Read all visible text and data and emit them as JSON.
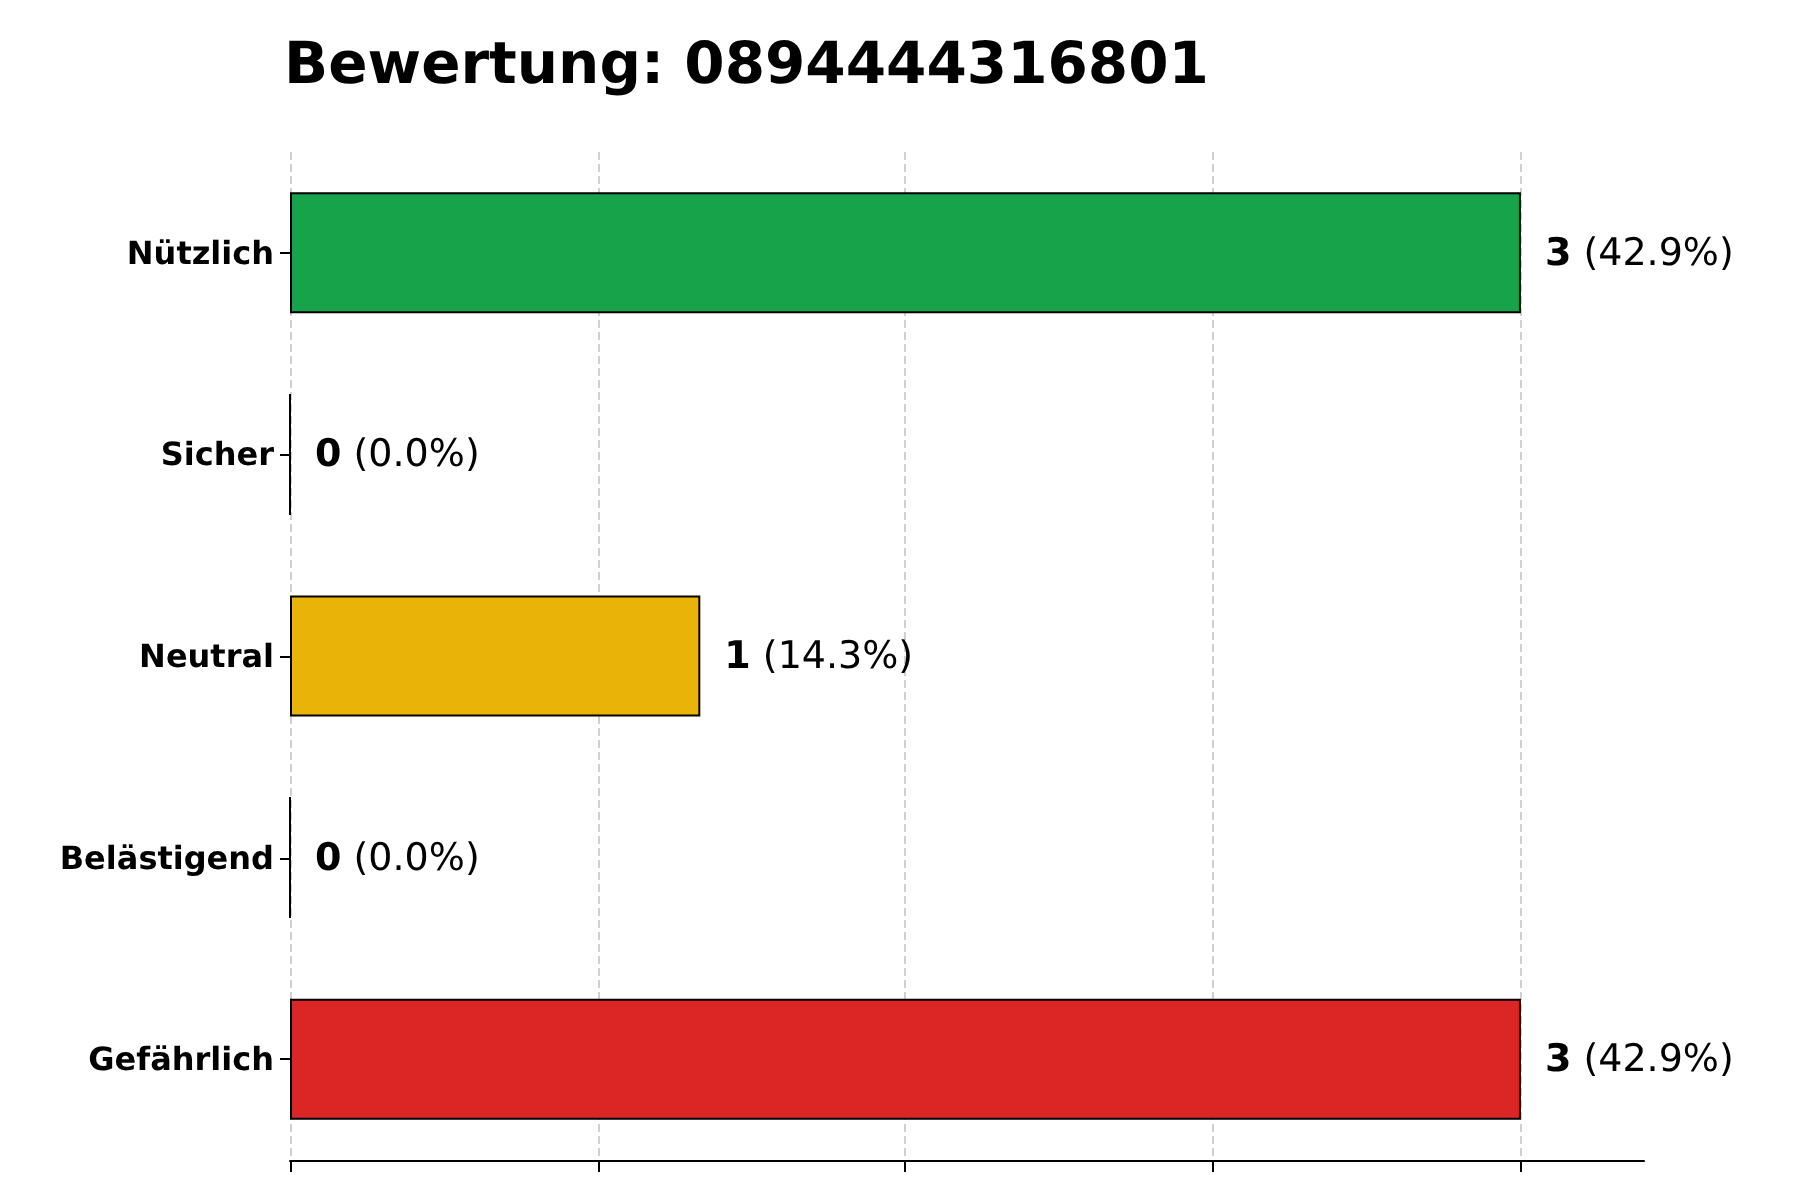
{
  "chart_data": {
    "type": "bar",
    "orientation": "horizontal",
    "title": "Bewertung: 0894444316801",
    "categories": [
      "Nützlich",
      "Sicher",
      "Neutral",
      "Belästigend",
      "Gefährlich"
    ],
    "values": [
      3,
      0,
      1,
      0,
      3
    ],
    "colors": [
      "#16a34a",
      "#000000",
      "#eab308",
      "#000000",
      "#dc2626"
    ],
    "value_labels": [
      "3 (42.9%)",
      "0 (0.0%)",
      "1 (14.3%)",
      "0 (0.0%)",
      "3 (42.9%)"
    ],
    "xlim": [
      0,
      3.3
    ],
    "xticks": [
      {
        "value": 0,
        "label": null
      },
      {
        "value": 0.75,
        "label": null
      },
      {
        "value": 1.5,
        "label": null
      },
      {
        "value": 2.25,
        "label": null
      },
      {
        "value": 3,
        "label": null
      }
    ],
    "grid": "x",
    "tick_labels": "y"
  }
}
